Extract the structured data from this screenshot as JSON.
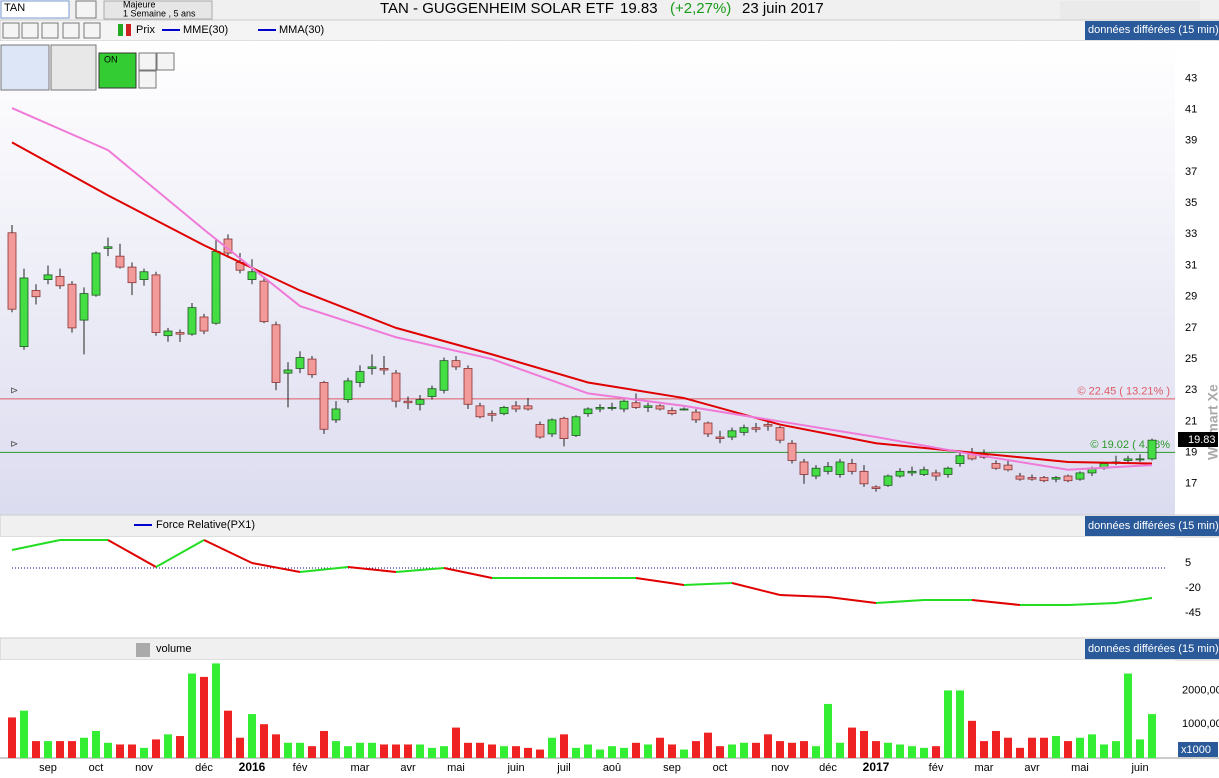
{
  "header": {
    "symbol": "TAN",
    "mode": "Majeure",
    "period": "1 Semaine , 5 ans",
    "title": "TAN - GUGGENHEIM SOLAR ETF",
    "price": "19.83",
    "change": "(+2,27%)",
    "date": "23 juin 2017",
    "on_label": "ON",
    "delayed": "données différées (15 min)",
    "watermark": "Walmart Xe"
  },
  "chart_data": [
    {
      "type": "candlestick",
      "name": "Prix",
      "ylim": [
        15,
        45.4
      ],
      "yticks": [
        17,
        19,
        21,
        23,
        25,
        27,
        29,
        31,
        33,
        35,
        37,
        39,
        41,
        43
      ],
      "ohlc": [
        [
          33.1,
          33.6,
          28,
          28.2
        ],
        [
          25.8,
          30.8,
          25.6,
          30.2
        ],
        [
          29.4,
          29.8,
          28.5,
          29
        ],
        [
          30.1,
          31,
          29.8,
          30.4
        ],
        [
          30.3,
          30.8,
          29.5,
          29.7
        ],
        [
          29.8,
          30,
          26.7,
          27
        ],
        [
          27.5,
          29.6,
          25.3,
          29.2
        ],
        [
          29.1,
          31.9,
          29,
          31.8
        ],
        [
          32.1,
          32.8,
          31.6,
          32.2
        ],
        [
          31.6,
          32.4,
          30.8,
          30.9
        ],
        [
          30.9,
          31.2,
          29.1,
          29.9
        ],
        [
          30.1,
          30.8,
          29.7,
          30.6
        ],
        [
          30.4,
          30.6,
          26.5,
          26.7
        ],
        [
          26.5,
          27,
          26.1,
          26.8
        ],
        [
          26.7,
          26.9,
          26.1,
          26.6
        ],
        [
          26.6,
          28.6,
          26.5,
          28.3
        ],
        [
          27.7,
          27.9,
          26.6,
          26.8
        ],
        [
          27.3,
          32.7,
          27.2,
          31.9
        ],
        [
          32.7,
          33,
          31.5,
          31.8
        ],
        [
          31.2,
          31.8,
          30.5,
          30.7
        ],
        [
          30.1,
          31.4,
          29.8,
          30.6
        ],
        [
          30,
          30.2,
          27.3,
          27.4
        ],
        [
          27.2,
          27.4,
          23,
          23.5
        ],
        [
          24.1,
          24.8,
          21.9,
          24.3
        ],
        [
          24.4,
          25.5,
          24.1,
          25.1
        ],
        [
          25,
          25.2,
          23.8,
          24
        ],
        [
          23.5,
          23.6,
          20.2,
          20.5
        ],
        [
          21.1,
          22.3,
          20.9,
          21.8
        ],
        [
          22.4,
          23.8,
          22.2,
          23.6
        ],
        [
          23.5,
          24.6,
          23.2,
          24.2
        ],
        [
          24.4,
          25.3,
          24,
          24.5
        ],
        [
          24.4,
          25.2,
          24,
          24.3
        ],
        [
          24.1,
          24.3,
          21.9,
          22.3
        ],
        [
          22.3,
          22.6,
          21.8,
          22.2
        ],
        [
          22.1,
          22.7,
          21.7,
          22.4
        ],
        [
          22.6,
          23.3,
          22.4,
          23.1
        ],
        [
          23,
          25.1,
          22.8,
          24.9
        ],
        [
          24.9,
          25.2,
          24.3,
          24.5
        ],
        [
          24.4,
          24.6,
          21.8,
          22.1
        ],
        [
          22,
          22.2,
          21.2,
          21.3
        ],
        [
          21.5,
          21.7,
          21,
          21.4
        ],
        [
          21.5,
          22,
          21.4,
          21.9
        ],
        [
          22,
          22.3,
          21.6,
          21.8
        ],
        [
          22,
          22.5,
          21.7,
          21.8
        ],
        [
          20.8,
          21,
          19.9,
          20
        ],
        [
          20.2,
          21.2,
          20,
          21.1
        ],
        [
          21.2,
          21.3,
          19.4,
          19.9
        ],
        [
          20.1,
          21.4,
          20,
          21.3
        ],
        [
          21.5,
          21.9,
          21.3,
          21.8
        ],
        [
          21.8,
          22.1,
          21.6,
          21.9
        ],
        [
          21.9,
          22.2,
          21.7,
          21.9
        ],
        [
          21.8,
          22.4,
          21.6,
          22.3
        ],
        [
          22.2,
          22.8,
          21.8,
          21.9
        ],
        [
          21.9,
          22.2,
          21.6,
          22
        ],
        [
          22,
          22.1,
          21.7,
          21.8
        ],
        [
          21.7,
          21.9,
          21.4,
          21.5
        ],
        [
          21.8,
          21.9,
          21.7,
          21.8
        ],
        [
          21.6,
          21.8,
          20.9,
          21.1
        ],
        [
          20.9,
          21,
          20,
          20.2
        ],
        [
          20,
          20.4,
          19.6,
          19.9
        ],
        [
          20,
          20.6,
          19.8,
          20.4
        ],
        [
          20.3,
          20.8,
          20.1,
          20.6
        ],
        [
          20.6,
          20.9,
          20.3,
          20.5
        ],
        [
          20.8,
          21.1,
          20.4,
          20.7
        ],
        [
          20.6,
          20.7,
          19.6,
          19.8
        ],
        [
          19.6,
          19.8,
          18.3,
          18.5
        ],
        [
          18.4,
          18.6,
          17,
          17.6
        ],
        [
          17.5,
          18.2,
          17.3,
          18
        ],
        [
          17.8,
          18.4,
          17.6,
          18.1
        ],
        [
          17.6,
          18.6,
          17.4,
          18.4
        ],
        [
          18.3,
          18.6,
          17.6,
          17.8
        ],
        [
          17.8,
          18.2,
          16.8,
          17
        ],
        [
          16.8,
          16.9,
          16.5,
          16.7
        ],
        [
          16.9,
          17.6,
          16.8,
          17.5
        ],
        [
          17.5,
          18,
          17.4,
          17.8
        ],
        [
          17.7,
          18.1,
          17.5,
          17.8
        ],
        [
          17.6,
          18.1,
          17.5,
          17.9
        ],
        [
          17.7,
          17.9,
          17.2,
          17.5
        ],
        [
          17.6,
          18.1,
          17.4,
          18
        ],
        [
          18.3,
          19,
          18.1,
          18.8
        ],
        [
          19,
          19.3,
          18.5,
          18.6
        ],
        [
          18.9,
          19.2,
          18.6,
          18.7
        ],
        [
          18.3,
          18.5,
          17.9,
          18
        ],
        [
          18.2,
          18.5,
          17.8,
          17.9
        ],
        [
          17.5,
          17.7,
          17.2,
          17.3
        ],
        [
          17.4,
          17.6,
          17.2,
          17.3
        ],
        [
          17.4,
          17.5,
          17.1,
          17.2
        ],
        [
          17.3,
          17.5,
          17.1,
          17.4
        ],
        [
          17.5,
          17.6,
          17.1,
          17.2
        ],
        [
          17.3,
          17.8,
          17.2,
          17.7
        ],
        [
          17.7,
          18.1,
          17.5,
          18
        ],
        [
          18,
          18.4,
          17.9,
          18.3
        ],
        [
          18.4,
          18.8,
          18.2,
          18.4
        ],
        [
          18.5,
          18.8,
          18.3,
          18.6
        ],
        [
          18.6,
          18.9,
          18.4,
          18.6
        ],
        [
          18.6,
          19.9,
          18.5,
          19.8
        ]
      ],
      "series": [
        {
          "name": "MME(30)",
          "color": "#e00000",
          "x": [
            0,
            8,
            16,
            24,
            32,
            40,
            48,
            56,
            64,
            72,
            80,
            88,
            95
          ],
          "values": [
            38.9,
            35.5,
            32.3,
            29.4,
            27,
            25.3,
            23.5,
            22.5,
            20.8,
            19.6,
            19,
            18.4,
            18.3
          ]
        },
        {
          "name": "MMA(30)",
          "color": "#f07ad8",
          "x": [
            0,
            8,
            16,
            24,
            32,
            40,
            48,
            56,
            64,
            72,
            80,
            88,
            95
          ],
          "values": [
            41.1,
            38.4,
            33.3,
            28.4,
            26.4,
            25,
            22.8,
            22,
            21,
            20,
            18.9,
            17.9,
            18.2
          ]
        }
      ],
      "levels": [
        {
          "value": 22.45,
          "label": "© 22.45 ( 13.21% )",
          "color": "#e05a64"
        },
        {
          "value": 19.02,
          "label": "© 19.02 ( 4.08%",
          "color": "#2a9a2a"
        }
      ],
      "x_labels": [
        {
          "label": "sep",
          "at": 3
        },
        {
          "label": "oct",
          "at": 7
        },
        {
          "label": "nov",
          "at": 11
        },
        {
          "label": "déc",
          "at": 16
        },
        {
          "label": "2016",
          "at": 20
        },
        {
          "label": "fév",
          "at": 24
        },
        {
          "label": "mar",
          "at": 29
        },
        {
          "label": "avr",
          "at": 33
        },
        {
          "label": "mai",
          "at": 37
        },
        {
          "label": "juin",
          "at": 42
        },
        {
          "label": "juil",
          "at": 46
        },
        {
          "label": "aoû",
          "at": 50
        },
        {
          "label": "sep",
          "at": 55
        },
        {
          "label": "oct",
          "at": 59
        },
        {
          "label": "nov",
          "at": 64
        },
        {
          "label": "déc",
          "at": 68
        },
        {
          "label": "2017",
          "at": 72
        },
        {
          "label": "fév",
          "at": 77
        },
        {
          "label": "mar",
          "at": 81
        },
        {
          "label": "avr",
          "at": 85
        },
        {
          "label": "mai",
          "at": 89
        },
        {
          "label": "juin",
          "at": 94
        }
      ]
    },
    {
      "type": "line",
      "name": "Force Relative(PX1)",
      "ylim": [
        -70,
        31
      ],
      "yticks": [
        5,
        -20,
        -45
      ],
      "baseline": 0,
      "x": [
        0,
        4,
        8,
        12,
        16,
        20,
        24,
        28,
        32,
        36,
        40,
        44,
        48,
        52,
        56,
        60,
        64,
        68,
        72,
        76,
        80,
        84,
        88,
        92,
        95
      ],
      "values": [
        18,
        28,
        28,
        1,
        28,
        5,
        -4,
        1,
        -4,
        0,
        -10,
        -10,
        -10,
        -10,
        -17,
        -15,
        -27,
        -29,
        -35,
        -32,
        -32,
        -37,
        -37,
        -35,
        -30
      ],
      "colors": {
        "up": "#22dd22",
        "down": "#e00000"
      }
    },
    {
      "type": "bar",
      "name": "volume",
      "unit_label": "x1000",
      "ylim": [
        0,
        2900
      ],
      "yticks": [
        {
          "value": 2000,
          "label": "2000,00"
        },
        {
          "value": 1000,
          "label": "1000,00"
        }
      ],
      "values": [
        1200,
        1400,
        500,
        500,
        500,
        500,
        600,
        800,
        450,
        400,
        400,
        300,
        550,
        700,
        650,
        2500,
        2400,
        2800,
        1400,
        600,
        1300,
        1000,
        700,
        450,
        450,
        350,
        800,
        500,
        350,
        450,
        450,
        400,
        400,
        400,
        400,
        300,
        350,
        900,
        450,
        450,
        400,
        350,
        350,
        300,
        250,
        600,
        700,
        300,
        400,
        250,
        350,
        300,
        450,
        400,
        600,
        400,
        250,
        500,
        750,
        350,
        400,
        450,
        450,
        700,
        500,
        450,
        500,
        350,
        1600,
        450,
        900,
        800,
        500,
        450,
        400,
        350,
        300,
        350,
        2000,
        2000,
        1100,
        500,
        800,
        600,
        300,
        600,
        600,
        650,
        500,
        600,
        700,
        400,
        500,
        2500,
        550,
        1300
      ]
    }
  ]
}
